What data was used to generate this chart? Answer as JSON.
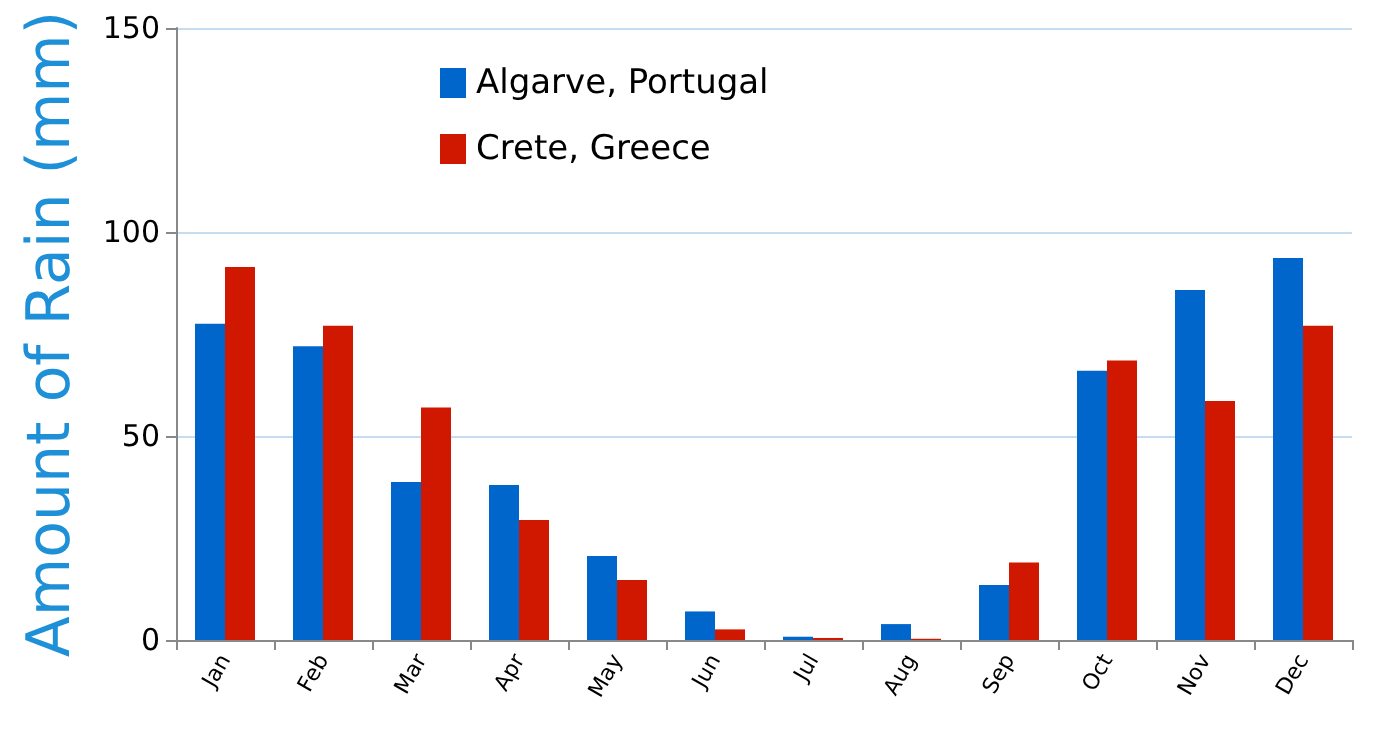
{
  "chart_data": {
    "type": "bar",
    "ylabel": "Amount of Rain (mm)",
    "categories": [
      "Jan",
      "Feb",
      "Mar",
      "Apr",
      "May",
      "Jun",
      "Jul",
      "Aug",
      "Sep",
      "Oct",
      "Nov",
      "Dec"
    ],
    "series": [
      {
        "name": "Algarve, Portugal",
        "color": "#0066cc",
        "values": [
          77.5,
          72,
          38.7,
          38,
          20.6,
          7,
          0.8,
          3.9,
          13.5,
          66,
          85.8,
          93.6
        ]
      },
      {
        "name": "Crete, Greece",
        "color": "#d01800",
        "values": [
          91.4,
          77,
          57,
          29.4,
          14.7,
          2.6,
          0.5,
          0.3,
          19,
          68.5,
          58.6,
          77
        ]
      }
    ],
    "ylim": [
      0,
      150
    ],
    "yticks": [
      0,
      50,
      100,
      150
    ],
    "grid": "y",
    "legend": "top"
  }
}
